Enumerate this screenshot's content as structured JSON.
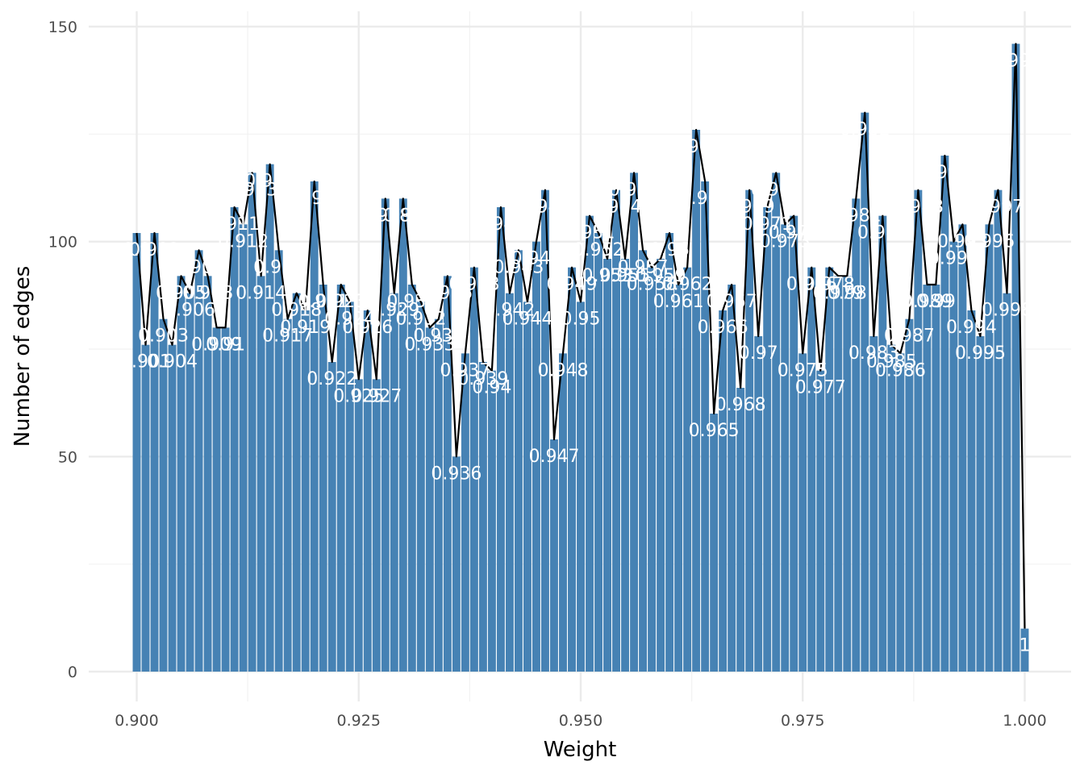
{
  "chart_data": {
    "type": "bar",
    "xlabel": "Weight",
    "ylabel": "Number of edges",
    "xlim": [
      0.895,
      1.005
    ],
    "ylim": [
      0,
      150
    ],
    "x_ticks": [
      "0.900",
      "0.925",
      "0.950",
      "0.975",
      "1.000"
    ],
    "x_tick_values": [
      0.9,
      0.925,
      0.95,
      0.975,
      1.0
    ],
    "y_ticks": [
      "0",
      "50",
      "100",
      "150"
    ],
    "y_tick_values": [
      0,
      50,
      100,
      150
    ],
    "grid": true,
    "bar_color": "#4682B4",
    "line_color": "#000000",
    "series": [
      {
        "x": [
          0.9,
          0.901,
          0.902,
          0.903,
          0.904,
          0.905,
          0.906,
          0.907,
          0.908,
          0.909,
          0.91,
          0.911,
          0.912,
          0.913,
          0.914,
          0.915,
          0.916,
          0.917,
          0.918,
          0.919,
          0.92,
          0.921,
          0.922,
          0.923,
          0.924,
          0.925,
          0.926,
          0.927,
          0.928,
          0.929,
          0.93,
          0.931,
          0.932,
          0.933,
          0.934,
          0.935,
          0.936,
          0.937,
          0.938,
          0.939,
          0.94,
          0.941,
          0.942,
          0.943,
          0.944,
          0.945,
          0.946,
          0.947,
          0.948,
          0.949,
          0.95,
          0.951,
          0.952,
          0.953,
          0.954,
          0.955,
          0.956,
          0.957,
          0.958,
          0.959,
          0.96,
          0.961,
          0.962,
          0.963,
          0.964,
          0.965,
          0.966,
          0.967,
          0.968,
          0.969,
          0.97,
          0.971,
          0.972,
          0.973,
          0.974,
          0.975,
          0.976,
          0.977,
          0.978,
          0.979,
          0.98,
          0.981,
          0.982,
          0.983,
          0.984,
          0.985,
          0.986,
          0.987,
          0.988,
          0.989,
          0.99,
          0.991,
          0.992,
          0.993,
          0.994,
          0.995,
          0.996,
          0.997,
          0.998,
          0.999,
          1.0
        ],
        "values": [
          102,
          76,
          102,
          82,
          76,
          92,
          88,
          98,
          92,
          80,
          80,
          108,
          104,
          116,
          92,
          118,
          98,
          82,
          88,
          84,
          114,
          90,
          72,
          90,
          86,
          68,
          84,
          68,
          110,
          88,
          110,
          90,
          86,
          80,
          82,
          92,
          50,
          74,
          94,
          72,
          70,
          108,
          88,
          98,
          86,
          100,
          112,
          54,
          74,
          94,
          86,
          106,
          102,
          96,
          112,
          96,
          116,
          98,
          94,
          96,
          102,
          90,
          94,
          126,
          114,
          60,
          84,
          90,
          66,
          112,
          78,
          108,
          116,
          104,
          106,
          74,
          94,
          70,
          94,
          92,
          92,
          110,
          130,
          78,
          106,
          76,
          74,
          82,
          112,
          90,
          90,
          120,
          100,
          104,
          84,
          78,
          104,
          112,
          88,
          146,
          10
        ],
        "labels": [
          "0.9",
          "0.901",
          "0.902",
          "0.903",
          "0.904",
          "0.905",
          "0.906",
          "0.907",
          "0.908",
          "0.909",
          "0.91",
          "0.911",
          "0.912",
          "0.913",
          "0.914",
          "0.915",
          "0.916",
          "0.917",
          "0.918",
          "0.919",
          "0.92",
          "0.921",
          "0.922",
          "0.923",
          "0.924",
          "0.925",
          "0.926",
          "0.927",
          "0.928",
          "0.929",
          "0.93",
          "0.931",
          "0.932",
          "0.933",
          "0.934",
          "0.935",
          "0.936",
          "0.937",
          "0.938",
          "0.939",
          "0.94",
          "0.941",
          "0.942",
          "0.943",
          "0.944",
          "0.945",
          "0.946",
          "0.947",
          "0.948",
          "0.949",
          "0.95",
          "0.951",
          "0.952",
          "0.953",
          "0.954",
          "0.955",
          "0.956",
          "0.957",
          "0.958",
          "0.959",
          "0.96",
          "0.961",
          "0.962",
          "0.963",
          "0.964",
          "0.965",
          "0.966",
          "0.967",
          "0.968",
          "0.969",
          "0.97",
          "0.971",
          "0.972",
          "0.973",
          "0.974",
          "0.975",
          "0.976",
          "0.977",
          "0.978",
          "0.979",
          "0.98",
          "0.981",
          "0.982",
          "0.983",
          "0.984",
          "0.985",
          "0.986",
          "0.987",
          "0.988",
          "0.989",
          "0.99",
          "0.991",
          "0.992",
          "0.993",
          "0.994",
          "0.995",
          "0.996",
          "0.997",
          "0.998",
          "0.999",
          "1"
        ]
      }
    ]
  }
}
